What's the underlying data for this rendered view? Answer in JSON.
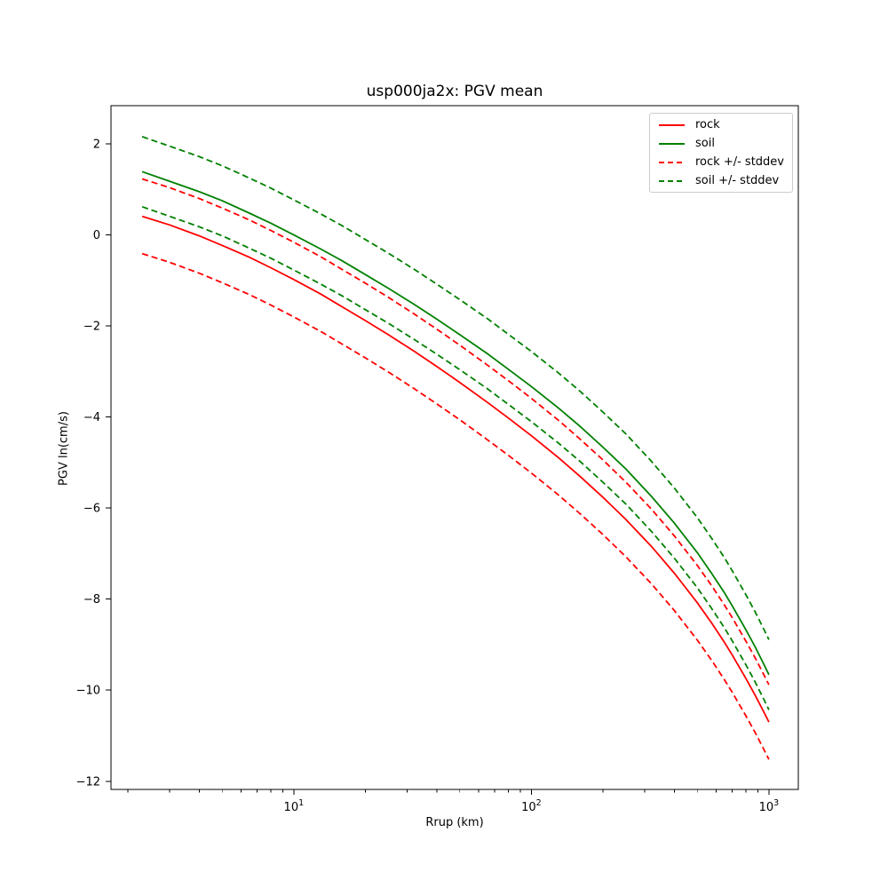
{
  "chart_data": {
    "type": "line",
    "title": "usp000ja2x: PGV mean",
    "xlabel": "Rrup (km)",
    "ylabel": "PGV ln(cm/s)",
    "xscale": "log",
    "grid": false,
    "legend_position": "upper right",
    "xlim": [
      1.7,
      1330
    ],
    "ylim": [
      -12.18,
      2.84
    ],
    "xticks": [
      {
        "value": 10,
        "base": "10",
        "exp": "1"
      },
      {
        "value": 100,
        "base": "10",
        "exp": "2"
      },
      {
        "value": 1000,
        "base": "10",
        "exp": "3"
      }
    ],
    "xticks_minor": [
      2,
      3,
      4,
      5,
      6,
      7,
      8,
      9,
      20,
      30,
      40,
      50,
      60,
      70,
      80,
      90,
      200,
      300,
      400,
      500,
      600,
      700,
      800,
      900
    ],
    "yticks": [
      2,
      0,
      -2,
      -4,
      -6,
      -8,
      -10,
      -12
    ],
    "ytick_labels": [
      "2",
      "0",
      "−2",
      "−4",
      "−6",
      "−8",
      "−10",
      "−12"
    ],
    "x": [
      2.3,
      3,
      4,
      5,
      6.5,
      8,
      10,
      13,
      16,
      20,
      25,
      32,
      40,
      50,
      65,
      80,
      100,
      130,
      160,
      200,
      250,
      320,
      400,
      500,
      575,
      650,
      700,
      800,
      875,
      950,
      1000
    ],
    "series": [
      {
        "name": "rock",
        "color": "#ff0000",
        "style": "solid",
        "values": [
          0.41,
          0.22,
          -0.02,
          -0.23,
          -0.49,
          -0.72,
          -0.98,
          -1.3,
          -1.58,
          -1.88,
          -2.19,
          -2.55,
          -2.89,
          -3.24,
          -3.67,
          -4.02,
          -4.41,
          -4.89,
          -5.3,
          -5.76,
          -6.25,
          -6.84,
          -7.43,
          -8.08,
          -8.53,
          -8.95,
          -9.22,
          -9.74,
          -10.11,
          -10.47,
          -10.7
        ]
      },
      {
        "name": "soil",
        "color": "#008000",
        "style": "solid",
        "values": [
          1.39,
          1.18,
          0.95,
          0.75,
          0.48,
          0.26,
          0.0,
          -0.31,
          -0.57,
          -0.87,
          -1.17,
          -1.52,
          -1.85,
          -2.19,
          -2.6,
          -2.95,
          -3.33,
          -3.8,
          -4.2,
          -4.66,
          -5.14,
          -5.74,
          -6.33,
          -6.98,
          -7.44,
          -7.86,
          -8.14,
          -8.67,
          -9.05,
          -9.42,
          -9.66
        ]
      }
    ],
    "rock_stddev": 0.82,
    "soil_stddev": 0.77,
    "legend": [
      {
        "label": "rock",
        "color": "#ff0000",
        "dash": "solid"
      },
      {
        "label": "soil",
        "color": "#008000",
        "dash": "solid"
      },
      {
        "label": "rock +/- stddev",
        "color": "#ff0000",
        "dash": "dashed"
      },
      {
        "label": "soil +/- stddev",
        "color": "#008000",
        "dash": "dashed"
      }
    ]
  }
}
